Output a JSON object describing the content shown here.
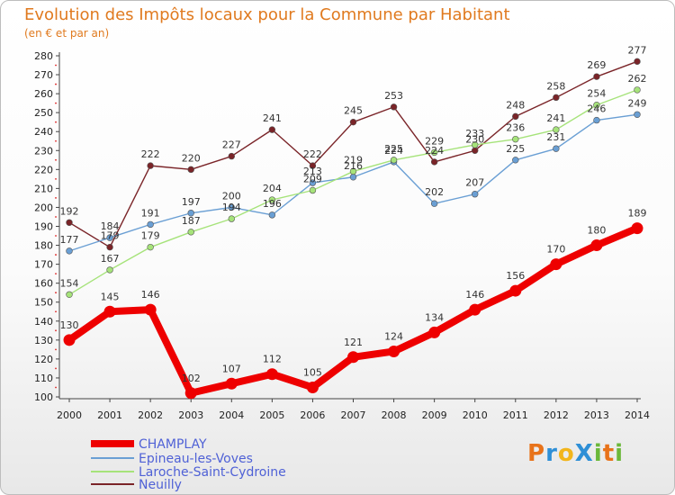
{
  "chart_data": {
    "type": "line",
    "title": "Evolution des Impôts locaux pour la Commune par Habitant",
    "subtitle": "(en € et par an)",
    "xlabel": "",
    "ylabel": "",
    "ylim": [
      100,
      280
    ],
    "ytick_step": 10,
    "grid": false,
    "legend_position": "bottom-left",
    "x": [
      2000,
      2001,
      2002,
      2003,
      2004,
      2005,
      2006,
      2007,
      2008,
      2009,
      2010,
      2011,
      2012,
      2013,
      2014
    ],
    "series": [
      {
        "name": "CHAMPLAY",
        "color": "#ee0000",
        "values": [
          130,
          145,
          146,
          102,
          107,
          112,
          105,
          121,
          124,
          134,
          146,
          156,
          170,
          180,
          189
        ]
      },
      {
        "name": "Epineau-les-Voves",
        "color": "#6a9fd4",
        "values": [
          177,
          184,
          191,
          197,
          200,
          196,
          213,
          216,
          224,
          202,
          207,
          225,
          231,
          246,
          249
        ]
      },
      {
        "name": "Laroche-Saint-Cydroine",
        "color": "#a6e37a",
        "values": [
          154,
          167,
          179,
          187,
          194,
          204,
          209,
          219,
          225,
          229,
          233,
          236,
          241,
          254,
          262
        ]
      },
      {
        "name": "Neuilly",
        "color": "#7a2428",
        "values": [
          192,
          179,
          222,
          220,
          227,
          241,
          222,
          245,
          253,
          224,
          230,
          248,
          258,
          269,
          277
        ]
      }
    ]
  },
  "logo": {
    "text": "ProXiti",
    "letters": [
      "P",
      "r",
      "o",
      "X",
      "i",
      "t",
      "i"
    ]
  }
}
